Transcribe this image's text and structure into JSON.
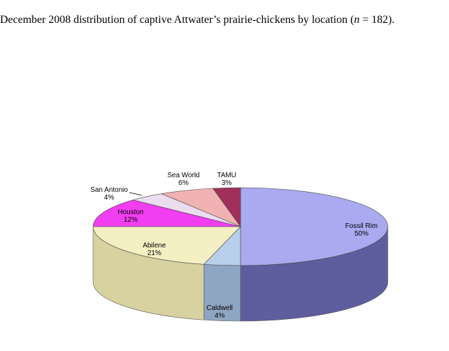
{
  "caption": {
    "before": "December 2008 distribution of captive Attwater’s prairie-chickens by location (",
    "n_symbol": "n",
    "after": " = 182)."
  },
  "chart_data": {
    "type": "pie",
    "three_d": true,
    "total_n": 182,
    "slices": [
      {
        "label": "Fossil Rim",
        "value": 50,
        "value_label": "50%",
        "color": "#aaaaf0",
        "side_color": "#5e5e9e"
      },
      {
        "label": "Caldwell",
        "value": 4,
        "value_label": "4%",
        "color": "#b8d0ea",
        "side_color": "#8fa6c2"
      },
      {
        "label": "Abilene",
        "value": 21,
        "value_label": "21%",
        "color": "#f4f0c4",
        "side_color": "#d8d2a0"
      },
      {
        "label": "Houston",
        "value": 12,
        "value_label": "12%",
        "color": "#f03ef0",
        "side_color": "#b02cb0"
      },
      {
        "label": "San Antonio",
        "value": 4,
        "value_label": "4%",
        "color": "#ecdcf0",
        "side_color": "#b9a8c0"
      },
      {
        "label": "Sea World",
        "value": 6,
        "value_label": "6%",
        "color": "#f0b2b2",
        "side_color": "#c08080"
      },
      {
        "label": "TAMU",
        "value": 3,
        "value_label": "3%",
        "color": "#a0305a",
        "side_color": "#701d3d"
      }
    ]
  }
}
